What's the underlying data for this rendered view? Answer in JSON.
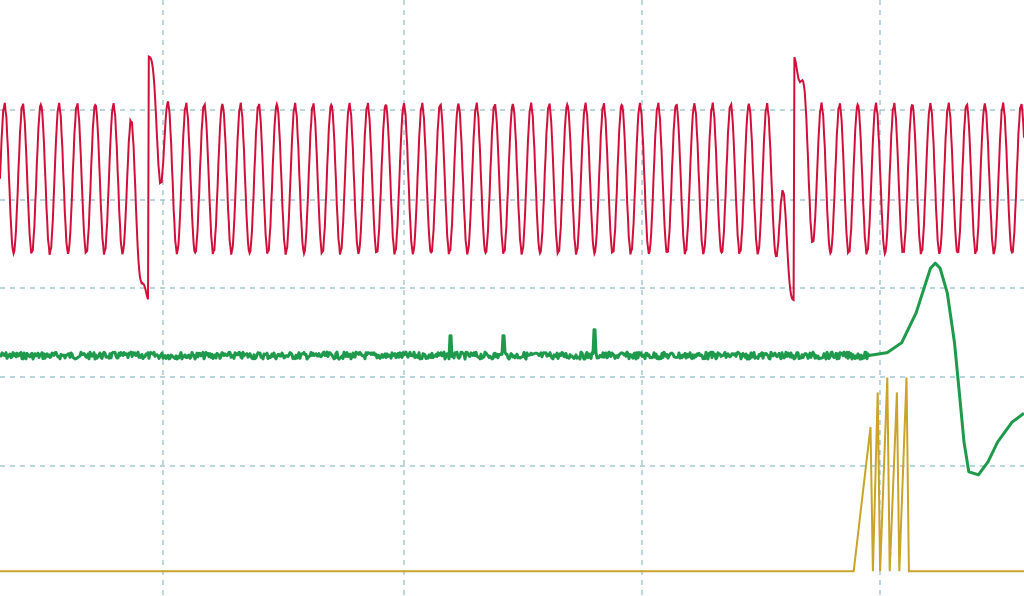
{
  "chart_data": {
    "type": "line",
    "title": "",
    "xlabel": "",
    "ylabel": "",
    "grid": true,
    "legend": "none",
    "xlim": [
      0,
      10
    ],
    "ylim": [
      0,
      6
    ],
    "grid_divisions": {
      "x": 10,
      "y": 6
    },
    "grid_color": "#8fbcc8",
    "series": [
      {
        "color": "#d0103a",
        "kind": "oscillation",
        "center": 4.2,
        "amplitude": 0.75,
        "period": 0.0757,
        "bursts": [
          {
            "x": 0.62,
            "peak": 5.43,
            "trough": 2.98
          },
          {
            "x": 3.31,
            "peak": 5.43,
            "trough": 2.98
          }
        ]
      },
      {
        "color": "#1f9a4c",
        "kind": "baseline-pulse",
        "baseline": 2.42,
        "spikes": [
          {
            "x": 1.88,
            "y": 2.62
          },
          {
            "x": 2.1,
            "y": 2.62
          },
          {
            "x": 2.48,
            "y": 2.68
          }
        ],
        "pulse": [
          [
            3.62,
            2.42
          ],
          [
            3.7,
            2.45
          ],
          [
            3.76,
            2.55
          ],
          [
            3.82,
            2.85
          ],
          [
            3.86,
            3.15
          ],
          [
            3.88,
            3.3
          ],
          [
            3.9,
            3.35
          ],
          [
            3.92,
            3.3
          ],
          [
            3.95,
            3.05
          ],
          [
            3.98,
            2.55
          ],
          [
            4.0,
            2.05
          ],
          [
            4.02,
            1.55
          ],
          [
            4.04,
            1.25
          ],
          [
            4.08,
            1.22
          ],
          [
            4.12,
            1.35
          ],
          [
            4.16,
            1.55
          ],
          [
            4.22,
            1.75
          ],
          [
            4.27,
            1.84
          ]
        ]
      },
      {
        "color": "#c9a32a",
        "kind": "digital",
        "baseline": 0.25,
        "burst": [
          [
            3.56,
            0.25
          ],
          [
            3.63,
            1.7
          ],
          [
            3.64,
            0.25
          ],
          [
            3.66,
            2.05
          ],
          [
            3.67,
            0.25
          ],
          [
            3.7,
            2.2
          ],
          [
            3.71,
            0.25
          ],
          [
            3.74,
            2.05
          ],
          [
            3.75,
            0.25
          ],
          [
            3.78,
            2.2
          ],
          [
            3.79,
            0.25
          ]
        ]
      }
    ]
  }
}
